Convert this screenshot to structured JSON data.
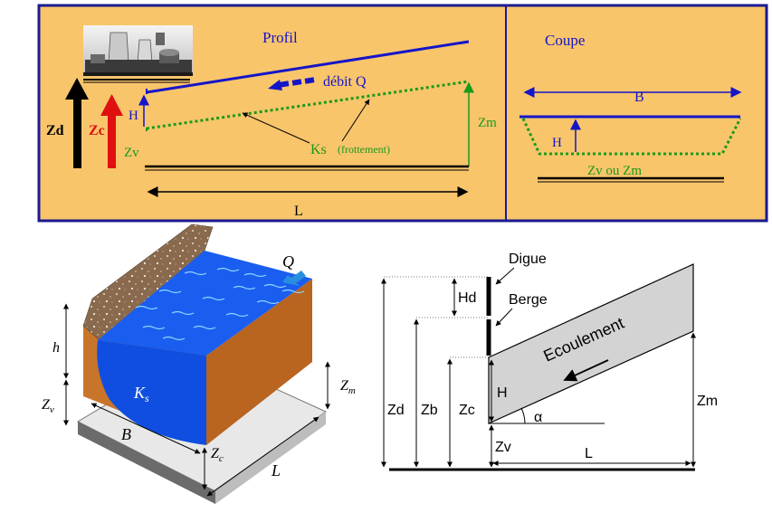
{
  "top": {
    "colors": {
      "panel": "#f8c56b",
      "border": "#1a1a90",
      "blue": "#1515c8",
      "green": "#1a9a1a",
      "red": "#e01010",
      "black": "#000000"
    },
    "profil": {
      "title": "Profil",
      "debit": "débit Q",
      "zd": "Zd",
      "zc": "Zc",
      "zv": "Zv",
      "h": "H",
      "zm": "Zm",
      "ks": "Ks",
      "ks_note": "(frottement)",
      "l": "L"
    },
    "coupe": {
      "title": "Coupe",
      "b": "B",
      "h": "H",
      "zv_zm": "Zv ou Zm"
    }
  },
  "left3d": {
    "q": "Q",
    "h": "h",
    "zv": "Z",
    "zv_sub": "v",
    "ks": "K",
    "ks_sub": "s",
    "zm": "Z",
    "zm_sub": "m",
    "b": "B",
    "zc": "Z",
    "zc_sub": "c",
    "l": "L"
  },
  "right": {
    "digue": "Digue",
    "berge": "Berge",
    "hd": "Hd",
    "ecoulement": "Ecoulement",
    "h": "H",
    "zd": "Zd",
    "zb": "Zb",
    "zc": "Zc",
    "zv": "Zv",
    "zm": "Zm",
    "alpha": "α",
    "l": "L"
  }
}
